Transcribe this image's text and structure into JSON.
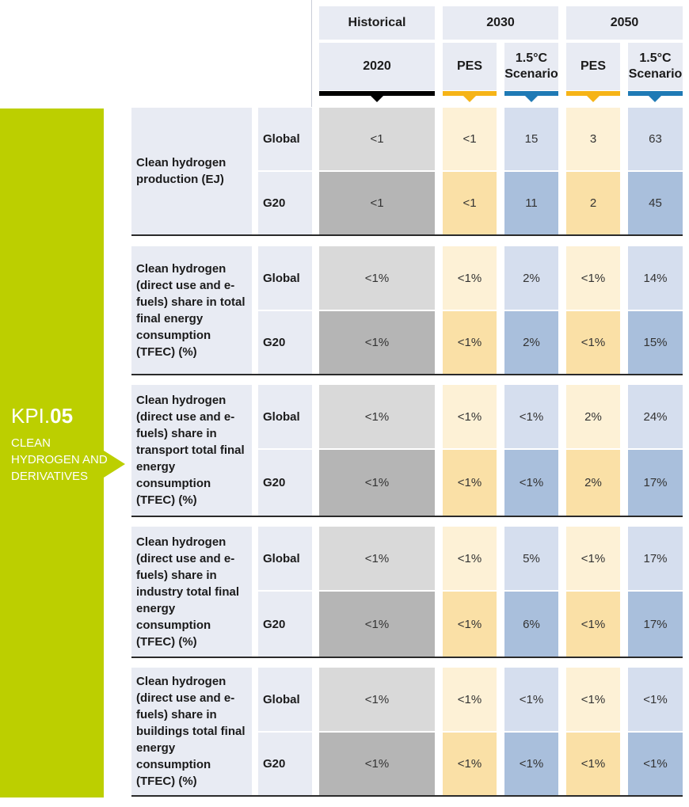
{
  "header": {
    "group_historical": "Historical",
    "group_2030": "2030",
    "group_2050": "2050",
    "col_2020": "2020",
    "col_pes_2030": "PES",
    "col_sc_2030_line1": "1.5°C",
    "col_sc_2030_line2": "Scenario",
    "col_pes_2050": "PES",
    "col_sc_2050_line1": "1.5°C",
    "col_sc_2050_line2": "Scenario"
  },
  "kpi": {
    "prefix": "KPI.",
    "number": "05",
    "title": "CLEAN HYDROGEN AND DERIVATIVES",
    "color": "#bccf00"
  },
  "colors": {
    "historical_bar": "#000000",
    "pes_bar": "#f6b417",
    "scenario_bar": "#1f7ab5"
  },
  "rows": [
    {
      "label": "Clean hydrogen production (EJ)",
      "global_label": "Global",
      "g20_label": "G20",
      "global": [
        "<1",
        "<1",
        "15",
        "3",
        "63"
      ],
      "g20": [
        "<1",
        "<1",
        "11",
        "2",
        "45"
      ]
    },
    {
      "label": "Clean hydrogen (direct use and e-fuels) share in total final energy consumption (TFEC) (%)",
      "global_label": "Global",
      "g20_label": "G20",
      "global": [
        "<1%",
        "<1%",
        "2%",
        "<1%",
        "14%"
      ],
      "g20": [
        "<1%",
        "<1%",
        "2%",
        "<1%",
        "15%"
      ]
    },
    {
      "label": "Clean hydrogen (direct use and e-fuels) share in transport total final energy consumption (TFEC) (%)",
      "global_label": "Global",
      "g20_label": "G20",
      "global": [
        "<1%",
        "<1%",
        "<1%",
        "2%",
        "24%"
      ],
      "g20": [
        "<1%",
        "<1%",
        "<1%",
        "2%",
        "17%"
      ]
    },
    {
      "label": "Clean hydrogen (direct use and e-fuels) share in industry total final energy consumption (TFEC) (%)",
      "global_label": "Global",
      "g20_label": "G20",
      "global": [
        "<1%",
        "<1%",
        "5%",
        "<1%",
        "17%"
      ],
      "g20": [
        "<1%",
        "<1%",
        "6%",
        "<1%",
        "17%"
      ]
    },
    {
      "label": "Clean hydrogen (direct use and e-fuels) share in buildings total final energy consumption (TFEC) (%)",
      "global_label": "Global",
      "g20_label": "G20",
      "global": [
        "<1%",
        "<1%",
        "<1%",
        "<1%",
        "<1%"
      ],
      "g20": [
        "<1%",
        "<1%",
        "<1%",
        "<1%",
        "<1%"
      ]
    }
  ]
}
